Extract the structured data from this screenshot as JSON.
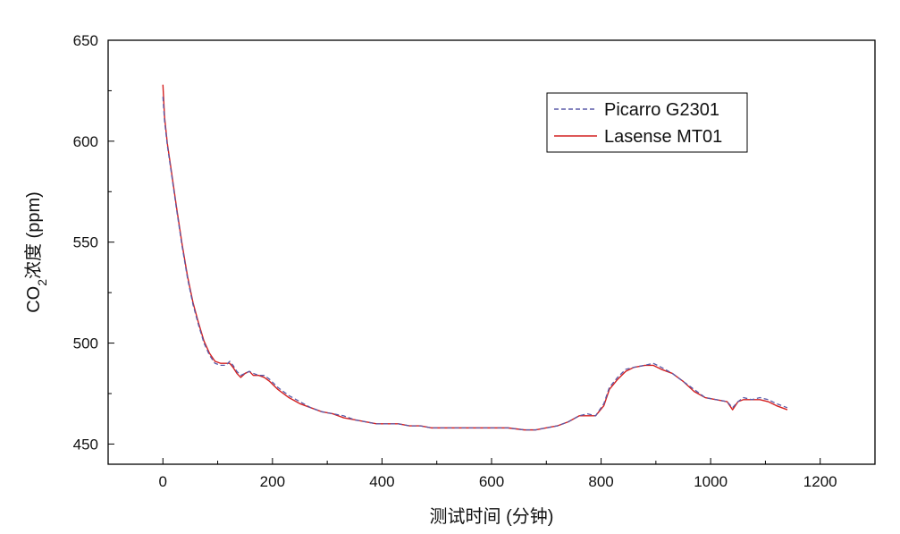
{
  "chart_data": {
    "type": "line",
    "title": "",
    "xlabel": "测试时间 (分钟)",
    "ylabel": {
      "prefix": "CO",
      "subscript": "2",
      "suffix": "浓度 (ppm)"
    },
    "xlim": [
      -100,
      1300
    ],
    "ylim": [
      440,
      650
    ],
    "xticks": [
      0,
      200,
      400,
      600,
      800,
      1000,
      1200
    ],
    "yticks": [
      450,
      500,
      550,
      600,
      650
    ],
    "grid": false,
    "legend_position": "top-right",
    "series": [
      {
        "name": "Picarro G2301",
        "color": "#5a5aa8",
        "dash": "dashed",
        "points": [
          [
            0,
            622
          ],
          [
            3,
            610
          ],
          [
            8,
            598
          ],
          [
            15,
            585
          ],
          [
            25,
            566
          ],
          [
            35,
            548
          ],
          [
            45,
            532
          ],
          [
            55,
            519
          ],
          [
            65,
            509
          ],
          [
            75,
            500
          ],
          [
            85,
            494
          ],
          [
            95,
            490
          ],
          [
            105,
            489
          ],
          [
            115,
            489
          ],
          [
            122,
            491
          ],
          [
            128,
            489
          ],
          [
            135,
            486
          ],
          [
            142,
            484
          ],
          [
            150,
            485
          ],
          [
            158,
            486
          ],
          [
            165,
            485
          ],
          [
            175,
            484
          ],
          [
            185,
            484
          ],
          [
            195,
            482
          ],
          [
            210,
            478
          ],
          [
            230,
            474
          ],
          [
            250,
            471
          ],
          [
            270,
            468
          ],
          [
            290,
            466
          ],
          [
            310,
            465
          ],
          [
            330,
            464
          ],
          [
            350,
            462
          ],
          [
            370,
            461
          ],
          [
            390,
            460
          ],
          [
            410,
            460
          ],
          [
            430,
            460
          ],
          [
            450,
            459
          ],
          [
            470,
            459
          ],
          [
            490,
            458
          ],
          [
            510,
            458
          ],
          [
            540,
            458
          ],
          [
            570,
            458
          ],
          [
            600,
            458
          ],
          [
            630,
            458
          ],
          [
            660,
            457
          ],
          [
            680,
            457
          ],
          [
            700,
            458
          ],
          [
            720,
            459
          ],
          [
            740,
            461
          ],
          [
            760,
            464
          ],
          [
            775,
            465
          ],
          [
            790,
            464
          ],
          [
            805,
            470
          ],
          [
            815,
            478
          ],
          [
            830,
            483
          ],
          [
            845,
            487
          ],
          [
            860,
            488
          ],
          [
            880,
            489
          ],
          [
            895,
            490
          ],
          [
            910,
            488
          ],
          [
            930,
            485
          ],
          [
            950,
            481
          ],
          [
            970,
            477
          ],
          [
            990,
            473
          ],
          [
            1010,
            472
          ],
          [
            1030,
            471
          ],
          [
            1040,
            468
          ],
          [
            1050,
            471
          ],
          [
            1060,
            473
          ],
          [
            1075,
            472
          ],
          [
            1090,
            473
          ],
          [
            1105,
            472
          ],
          [
            1120,
            470
          ],
          [
            1130,
            469
          ],
          [
            1140,
            468
          ]
        ]
      },
      {
        "name": "Lasense MT01",
        "color": "#d42020",
        "dash": "solid",
        "points": [
          [
            0,
            628
          ],
          [
            3,
            612
          ],
          [
            8,
            599
          ],
          [
            15,
            586
          ],
          [
            25,
            567
          ],
          [
            35,
            549
          ],
          [
            45,
            533
          ],
          [
            55,
            520
          ],
          [
            65,
            510
          ],
          [
            75,
            501
          ],
          [
            85,
            495
          ],
          [
            95,
            491
          ],
          [
            105,
            490
          ],
          [
            115,
            490
          ],
          [
            122,
            490
          ],
          [
            128,
            488
          ],
          [
            135,
            485
          ],
          [
            142,
            483
          ],
          [
            150,
            485
          ],
          [
            158,
            486
          ],
          [
            165,
            484
          ],
          [
            175,
            484
          ],
          [
            185,
            483
          ],
          [
            195,
            481
          ],
          [
            210,
            477
          ],
          [
            230,
            473
          ],
          [
            250,
            470
          ],
          [
            270,
            468
          ],
          [
            290,
            466
          ],
          [
            310,
            465
          ],
          [
            330,
            463
          ],
          [
            350,
            462
          ],
          [
            370,
            461
          ],
          [
            390,
            460
          ],
          [
            410,
            460
          ],
          [
            430,
            460
          ],
          [
            450,
            459
          ],
          [
            470,
            459
          ],
          [
            490,
            458
          ],
          [
            510,
            458
          ],
          [
            540,
            458
          ],
          [
            570,
            458
          ],
          [
            600,
            458
          ],
          [
            630,
            458
          ],
          [
            660,
            457
          ],
          [
            680,
            457
          ],
          [
            700,
            458
          ],
          [
            720,
            459
          ],
          [
            740,
            461
          ],
          [
            760,
            464
          ],
          [
            775,
            464
          ],
          [
            790,
            464
          ],
          [
            805,
            469
          ],
          [
            815,
            477
          ],
          [
            830,
            482
          ],
          [
            845,
            486
          ],
          [
            860,
            488
          ],
          [
            880,
            489
          ],
          [
            895,
            489
          ],
          [
            910,
            487
          ],
          [
            930,
            485
          ],
          [
            950,
            481
          ],
          [
            970,
            476
          ],
          [
            990,
            473
          ],
          [
            1010,
            472
          ],
          [
            1030,
            471
          ],
          [
            1040,
            467
          ],
          [
            1050,
            471
          ],
          [
            1060,
            472
          ],
          [
            1075,
            472
          ],
          [
            1090,
            472
          ],
          [
            1105,
            471
          ],
          [
            1120,
            469
          ],
          [
            1130,
            468
          ],
          [
            1140,
            467
          ]
        ]
      }
    ]
  }
}
